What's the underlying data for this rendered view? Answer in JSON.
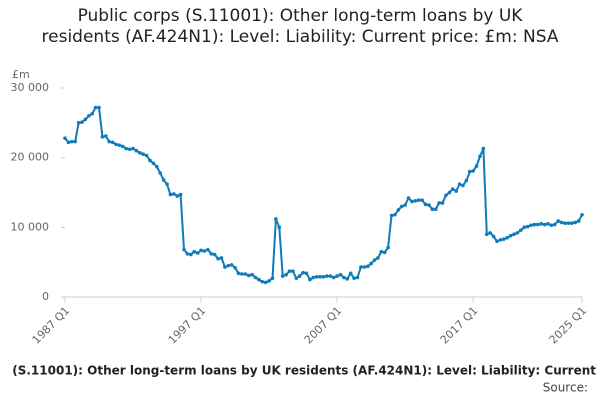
{
  "chart_data": {
    "type": "line",
    "title": "Public corps (S.11001): Other long-term loans by UK residents (AF.424N1): Level: Liability: Current price: £m: NSA",
    "y_unit": "£m",
    "footer": "(S.11001): Other long-term loans by UK residents (AF.424N1): Level: Liability: Current",
    "source": "Source:",
    "color": "#0f7bb8",
    "x": [
      1987,
      1987.25,
      1987.5,
      1987.75,
      1988,
      1988.25,
      1988.5,
      1988.75,
      1989,
      1989.25,
      1989.5,
      1989.75,
      1990,
      1990.25,
      1990.5,
      1990.75,
      1991,
      1991.25,
      1991.5,
      1991.75,
      1992,
      1992.25,
      1992.5,
      1992.75,
      1993,
      1993.25,
      1993.5,
      1993.75,
      1994,
      1994.25,
      1994.5,
      1994.75,
      1995,
      1995.25,
      1995.5,
      1995.75,
      1996,
      1996.25,
      1996.5,
      1996.75,
      1997,
      1997.25,
      1997.5,
      1997.75,
      1998,
      1998.25,
      1998.5,
      1998.75,
      1999,
      1999.25,
      1999.5,
      1999.75,
      2000,
      2000.25,
      2000.5,
      2000.75,
      2001,
      2001.25,
      2001.5,
      2001.75,
      2002,
      2002.25,
      2002.5,
      2002.75,
      2003,
      2003.25,
      2003.5,
      2003.75,
      2004,
      2004.25,
      2004.5,
      2004.75,
      2005,
      2005.25,
      2005.5,
      2005.75,
      2006,
      2006.25,
      2006.5,
      2006.75,
      2007,
      2007.25,
      2007.5,
      2007.75,
      2008,
      2008.25,
      2008.5,
      2008.75,
      2009,
      2009.25,
      2009.5,
      2009.75,
      2010,
      2010.25,
      2010.5,
      2010.75,
      2011,
      2011.25,
      2011.5,
      2011.75,
      2012,
      2012.25,
      2012.5,
      2012.75,
      2013,
      2013.25,
      2013.5,
      2013.75,
      2014,
      2014.25,
      2014.5,
      2014.75,
      2015,
      2015.25,
      2015.5,
      2015.75,
      2016,
      2016.25,
      2016.5,
      2016.75,
      2017,
      2017.25,
      2017.5,
      2017.75,
      2018,
      2018.25,
      2018.5,
      2018.75,
      2019,
      2019.25,
      2019.5,
      2019.75,
      2020,
      2020.25,
      2020.5,
      2020.75,
      2021,
      2021.25,
      2021.5,
      2021.75,
      2022,
      2022.25,
      2022.5,
      2022.75,
      2023,
      2023.25,
      2023.5,
      2023.75,
      2024,
      2024.25,
      2024.5,
      2024.75,
      2025
    ],
    "values": [
      22800,
      22200,
      22300,
      22300,
      25000,
      25100,
      25500,
      26000,
      26300,
      27200,
      27200,
      23000,
      23100,
      22300,
      22200,
      21900,
      21800,
      21600,
      21300,
      21200,
      21300,
      21000,
      20700,
      20500,
      20300,
      19600,
      19200,
      18700,
      17800,
      16800,
      16200,
      14700,
      14800,
      14500,
      14700,
      6800,
      6200,
      6100,
      6500,
      6300,
      6700,
      6600,
      6800,
      6200,
      6100,
      5500,
      5600,
      4300,
      4500,
      4600,
      4200,
      3400,
      3300,
      3300,
      3100,
      3200,
      2800,
      2500,
      2200,
      2100,
      2300,
      2700,
      11200,
      10000,
      3000,
      3200,
      3700,
      3700,
      2700,
      3000,
      3500,
      3400,
      2500,
      2800,
      2900,
      2900,
      2900,
      3000,
      3000,
      2800,
      3000,
      3200,
      2800,
      2600,
      3400,
      2700,
      2800,
      4300,
      4300,
      4400,
      4800,
      5300,
      5600,
      6500,
      6400,
      7100,
      11700,
      11800,
      12500,
      13000,
      13200,
      14200,
      13700,
      13800,
      13900,
      13900,
      13300,
      13200,
      12600,
      12600,
      13500,
      13500,
      14600,
      15000,
      15500,
      15200,
      16200,
      16000,
      16700,
      18000,
      18100,
      18800,
      20200,
      21300,
      9000,
      9200,
      8700,
      8000,
      8200,
      8300,
      8500,
      8800,
      9000,
      9200,
      9600,
      10000,
      10100,
      10300,
      10400,
      10400,
      10500,
      10400,
      10500,
      10300,
      10400,
      10900,
      10700,
      10600,
      10600,
      10600,
      10700,
      10900,
      11800
    ],
    "xlim": [
      1987,
      2025
    ],
    "xticks": [
      {
        "value": 1987,
        "label": "1987 Q1"
      },
      {
        "value": 1997,
        "label": "1997 Q1"
      },
      {
        "value": 2007,
        "label": "2007 Q1"
      },
      {
        "value": 2017,
        "label": "2017 Q1"
      },
      {
        "value": 2025,
        "label": "2025 Q1"
      }
    ],
    "ylim": [
      0,
      30000
    ],
    "yticks": [
      0,
      {
        "value": 10000,
        "label": "10 000"
      },
      {
        "value": 20000,
        "label": "20 000"
      },
      {
        "value": 30000,
        "label": "30 000"
      }
    ]
  }
}
